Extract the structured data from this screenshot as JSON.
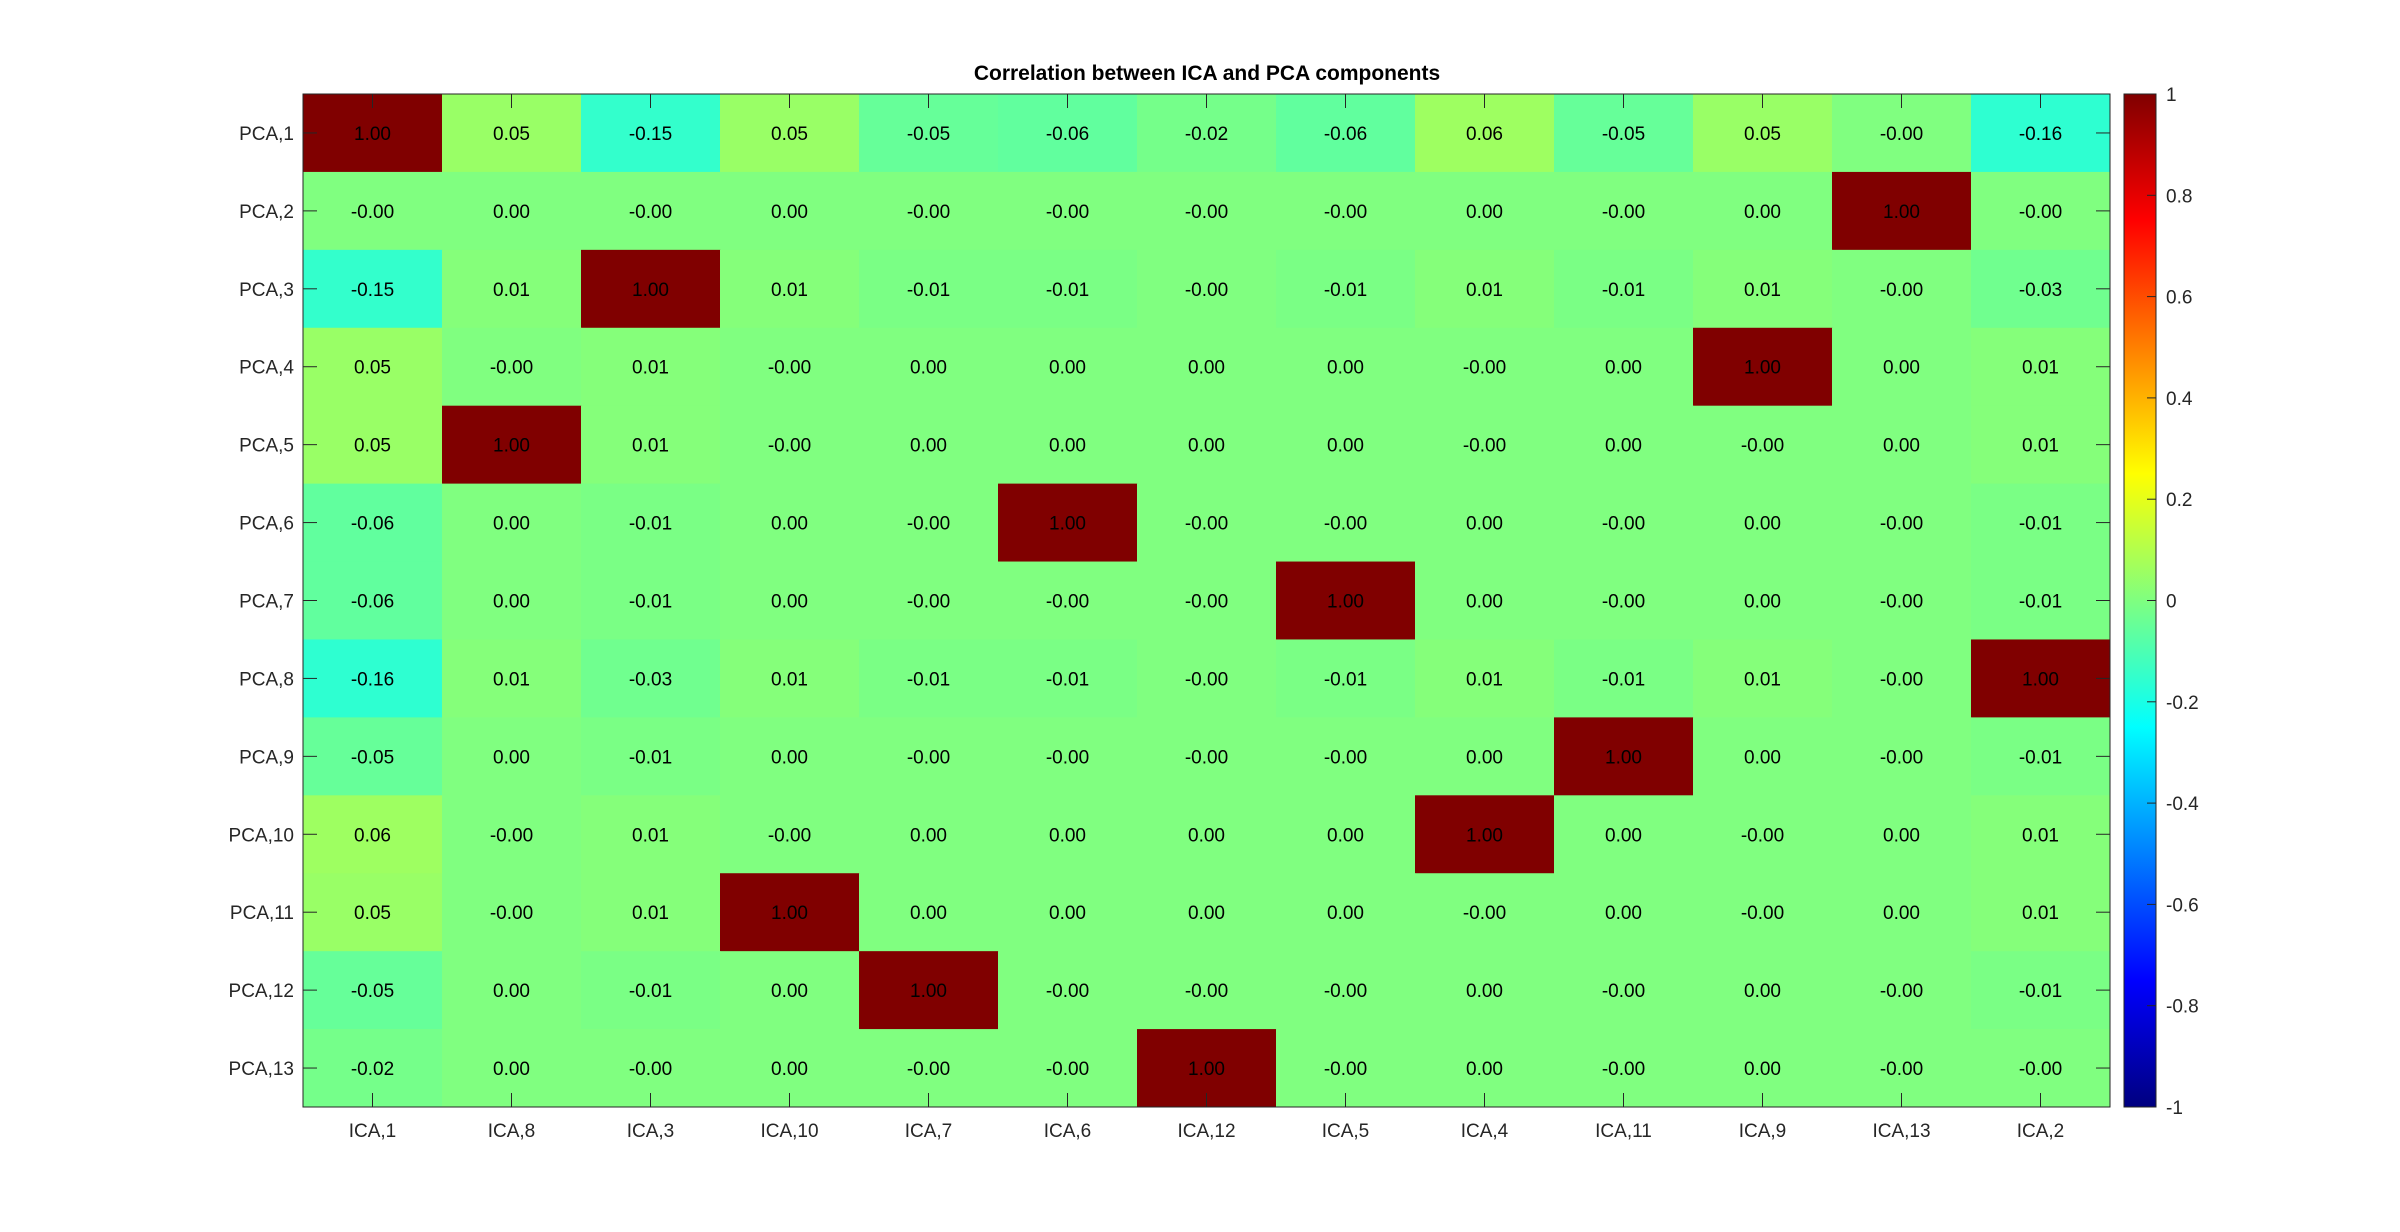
{
  "chart_data": {
    "type": "heatmap",
    "title": "Correlation between ICA and PCA components",
    "xlabel": "",
    "ylabel": "",
    "x_categories": [
      "ICA,1",
      "ICA,8",
      "ICA,3",
      "ICA,10",
      "ICA,7",
      "ICA,6",
      "ICA,12",
      "ICA,5",
      "ICA,4",
      "ICA,11",
      "ICA,9",
      "ICA,13",
      "ICA,2"
    ],
    "y_categories": [
      "PCA,1",
      "PCA,2",
      "PCA,3",
      "PCA,4",
      "PCA,5",
      "PCA,6",
      "PCA,7",
      "PCA,8",
      "PCA,9",
      "PCA,10",
      "PCA,11",
      "PCA,12",
      "PCA,13"
    ],
    "cell_labels": [
      [
        "1.00",
        "0.05",
        "-0.15",
        "0.05",
        "-0.05",
        "-0.06",
        "-0.02",
        "-0.06",
        "0.06",
        "-0.05",
        "0.05",
        "-0.00",
        "-0.16"
      ],
      [
        "-0.00",
        "0.00",
        "-0.00",
        "0.00",
        "-0.00",
        "-0.00",
        "-0.00",
        "-0.00",
        "0.00",
        "-0.00",
        "0.00",
        "1.00",
        "-0.00"
      ],
      [
        "-0.15",
        "0.01",
        "1.00",
        "0.01",
        "-0.01",
        "-0.01",
        "-0.00",
        "-0.01",
        "0.01",
        "-0.01",
        "0.01",
        "-0.00",
        "-0.03"
      ],
      [
        "0.05",
        "-0.00",
        "0.01",
        "-0.00",
        "0.00",
        "0.00",
        "0.00",
        "0.00",
        "-0.00",
        "0.00",
        "1.00",
        "0.00",
        "0.01"
      ],
      [
        "0.05",
        "1.00",
        "0.01",
        "-0.00",
        "0.00",
        "0.00",
        "0.00",
        "0.00",
        "-0.00",
        "0.00",
        "-0.00",
        "0.00",
        "0.01"
      ],
      [
        "-0.06",
        "0.00",
        "-0.01",
        "0.00",
        "-0.00",
        "1.00",
        "-0.00",
        "-0.00",
        "0.00",
        "-0.00",
        "0.00",
        "-0.00",
        "-0.01"
      ],
      [
        "-0.06",
        "0.00",
        "-0.01",
        "0.00",
        "-0.00",
        "-0.00",
        "-0.00",
        "1.00",
        "0.00",
        "-0.00",
        "0.00",
        "-0.00",
        "-0.01"
      ],
      [
        "-0.16",
        "0.01",
        "-0.03",
        "0.01",
        "-0.01",
        "-0.01",
        "-0.00",
        "-0.01",
        "0.01",
        "-0.01",
        "0.01",
        "-0.00",
        "1.00"
      ],
      [
        "-0.05",
        "0.00",
        "-0.01",
        "0.00",
        "-0.00",
        "-0.00",
        "-0.00",
        "-0.00",
        "0.00",
        "1.00",
        "0.00",
        "-0.00",
        "-0.01"
      ],
      [
        "0.06",
        "-0.00",
        "0.01",
        "-0.00",
        "0.00",
        "0.00",
        "0.00",
        "0.00",
        "1.00",
        "0.00",
        "-0.00",
        "0.00",
        "0.01"
      ],
      [
        "0.05",
        "-0.00",
        "0.01",
        "1.00",
        "0.00",
        "0.00",
        "0.00",
        "0.00",
        "-0.00",
        "0.00",
        "-0.00",
        "0.00",
        "0.01"
      ],
      [
        "-0.05",
        "0.00",
        "-0.01",
        "0.00",
        "1.00",
        "-0.00",
        "-0.00",
        "-0.00",
        "0.00",
        "-0.00",
        "0.00",
        "-0.00",
        "-0.01"
      ],
      [
        "-0.02",
        "0.00",
        "-0.00",
        "0.00",
        "-0.00",
        "-0.00",
        "1.00",
        "-0.00",
        "0.00",
        "-0.00",
        "0.00",
        "-0.00",
        "-0.00"
      ]
    ],
    "colorbar": {
      "colormap": "jet",
      "range": [
        -1,
        1
      ],
      "ticks": [
        "1",
        "0.8",
        "0.6",
        "0.4",
        "0.2",
        "0",
        "-0.2",
        "-0.4",
        "-0.6",
        "-0.8",
        "-1"
      ]
    },
    "grid": false
  }
}
